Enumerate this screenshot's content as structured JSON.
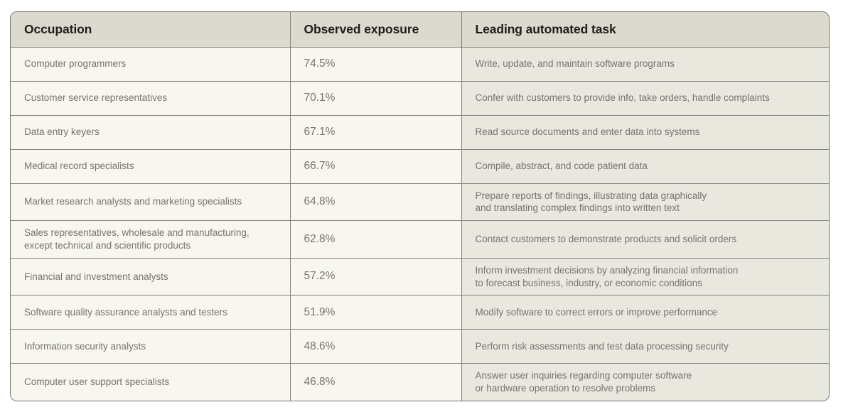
{
  "chart_data": {
    "type": "table",
    "columns": [
      "Occupation",
      "Observed exposure",
      "Leading automated task"
    ],
    "rows": [
      [
        "Computer programmers",
        "74.5%",
        "Write, update, and maintain software programs"
      ],
      [
        "Customer service representatives",
        "70.1%",
        "Confer with customers to provide info, take orders, handle complaints"
      ],
      [
        "Data entry keyers",
        "67.1%",
        "Read source documents and enter data into systems"
      ],
      [
        "Medical record specialists",
        "66.7%",
        "Compile, abstract, and code patient data"
      ],
      [
        "Market research analysts and marketing specialists",
        "64.8%",
        "Prepare reports of findings, illustrating data graphically\nand translating complex findings into written text"
      ],
      [
        "Sales representatives, wholesale and manufacturing,\nexcept technical and scientific products",
        "62.8%",
        "Contact customers to demonstrate products and solicit orders"
      ],
      [
        "Financial and investment analysts",
        "57.2%",
        "Inform investment decisions by analyzing financial information\nto forecast business, industry, or economic conditions"
      ],
      [
        "Software quality assurance analysts and testers",
        "51.9%",
        "Modify software to correct errors or improve performance"
      ],
      [
        "Information security analysts",
        "48.6%",
        "Perform risk assessments and test data processing security"
      ],
      [
        "Computer user support specialists",
        "46.8%",
        "Answer user inquiries regarding computer software\nor hardware operation to resolve problems"
      ]
    ]
  },
  "colors": {
    "page_background": "#ffffff",
    "header_background": "#dcd9ce",
    "body_cell_background": "#f7f6f0",
    "task_cell_background": "#e9e8df",
    "border": "#83827c",
    "header_text": "#1d1d1b",
    "body_text": "#76746c"
  }
}
